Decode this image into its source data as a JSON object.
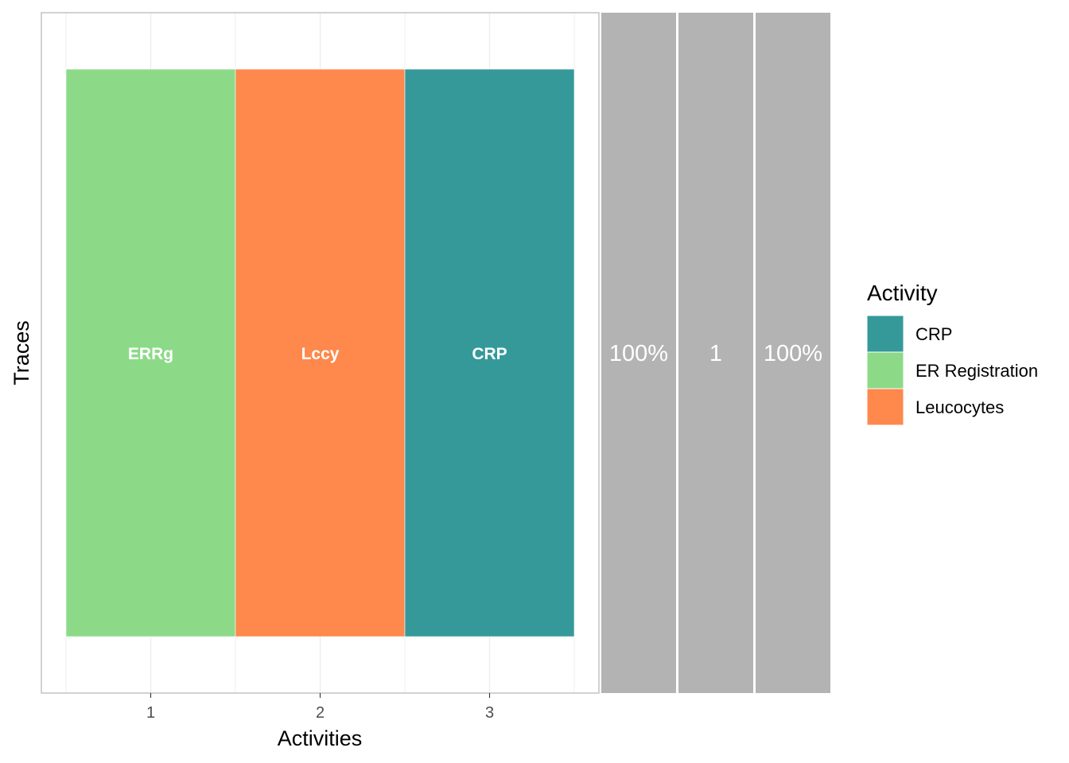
{
  "chart_data": {
    "type": "trace_explorer",
    "xlabel": "Activities",
    "ylabel": "Traces",
    "x_ticks": [
      "1",
      "2",
      "3"
    ],
    "xlim": [
      0.5,
      3.5
    ],
    "grid": true,
    "traces": [
      {
        "segments": [
          {
            "position": 1,
            "activity": "ER Registration",
            "label": "ERRg"
          },
          {
            "position": 2,
            "activity": "Leucocytes",
            "label": "Lccy"
          },
          {
            "position": 3,
            "activity": "CRP",
            "label": "CRP"
          }
        ],
        "stats": [
          "100%",
          "1",
          "100%"
        ]
      }
    ],
    "legend": {
      "title": "Activity",
      "position": "right",
      "entries": [
        {
          "label": "CRP",
          "color": "#35999A"
        },
        {
          "label": "ER Registration",
          "color": "#8CDA88"
        },
        {
          "label": "Leucocytes",
          "color": "#FF884C"
        }
      ]
    },
    "stat_panel_color": "#B3B3B3"
  }
}
